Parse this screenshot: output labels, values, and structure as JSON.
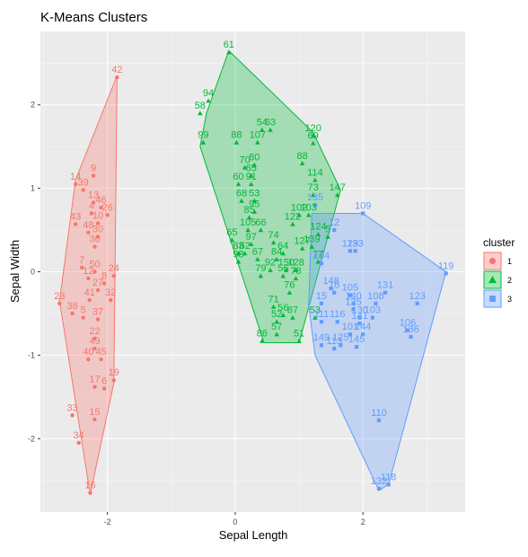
{
  "chart_data": {
    "type": "scatter",
    "title": "K-Means Clusters",
    "xlabel": "Sepal Length",
    "ylabel": "Sepal Width",
    "xlim": [
      -3.05,
      3.6
    ],
    "ylim": [
      -2.88,
      2.88
    ],
    "x_ticks": [
      -2,
      0,
      2
    ],
    "y_ticks": [
      -2,
      -1,
      0,
      1,
      2
    ],
    "grid": true,
    "legend": {
      "title": "cluster",
      "position": "right",
      "items": [
        {
          "key": "1",
          "label": "1",
          "color": "#F8766D",
          "shape": "circle"
        },
        {
          "key": "2",
          "label": "2",
          "color": "#00BA38",
          "shape": "triangle"
        },
        {
          "key": "3",
          "label": "3",
          "color": "#619CFF",
          "shape": "square"
        }
      ]
    },
    "clusters": [
      {
        "key": "1",
        "color": "#F8766D",
        "shape": "circle",
        "hull": [
          [
            -2.27,
            -2.67
          ],
          [
            -2.75,
            -0.35
          ],
          [
            -2.5,
            1.1
          ],
          [
            -1.85,
            2.35
          ],
          [
            -1.9,
            -1.33
          ]
        ],
        "points": [
          {
            "x": -1.85,
            "y": 2.33,
            "label": "42"
          },
          {
            "x": -2.22,
            "y": 1.15,
            "label": "9"
          },
          {
            "x": -2.5,
            "y": 1.05,
            "label": "14"
          },
          {
            "x": -2.38,
            "y": 0.98,
            "label": "39"
          },
          {
            "x": -2.22,
            "y": 0.83,
            "label": "13"
          },
          {
            "x": -2.1,
            "y": 0.77,
            "label": "46"
          },
          {
            "x": -2.0,
            "y": 0.68,
            "label": "26"
          },
          {
            "x": -2.25,
            "y": 0.7,
            "label": "4"
          },
          {
            "x": -2.15,
            "y": 0.58,
            "label": "10"
          },
          {
            "x": -2.5,
            "y": 0.57,
            "label": "43"
          },
          {
            "x": -2.3,
            "y": 0.47,
            "label": "48"
          },
          {
            "x": -2.15,
            "y": 0.42,
            "label": "30"
          },
          {
            "x": -2.2,
            "y": 0.3,
            "label": "36"
          },
          {
            "x": -2.4,
            "y": 0.05,
            "label": "7"
          },
          {
            "x": -2.2,
            "y": 0.0,
            "label": "50"
          },
          {
            "x": -1.9,
            "y": -0.05,
            "label": "24"
          },
          {
            "x": -2.3,
            "y": -0.08,
            "label": "12"
          },
          {
            "x": -2.05,
            "y": -0.14,
            "label": "8"
          },
          {
            "x": -2.15,
            "y": -0.22,
            "label": "27"
          },
          {
            "x": -2.28,
            "y": -0.34,
            "label": "41"
          },
          {
            "x": -1.95,
            "y": -0.34,
            "label": "32"
          },
          {
            "x": -2.75,
            "y": -0.38,
            "label": "23"
          },
          {
            "x": -2.55,
            "y": -0.5,
            "label": "38"
          },
          {
            "x": -2.38,
            "y": -0.55,
            "label": "5"
          },
          {
            "x": -2.15,
            "y": -0.57,
            "label": "37"
          },
          {
            "x": -2.2,
            "y": -0.8,
            "label": "22"
          },
          {
            "x": -2.2,
            "y": -0.92,
            "label": "49"
          },
          {
            "x": -2.3,
            "y": -1.05,
            "label": "40"
          },
          {
            "x": -2.1,
            "y": -1.05,
            "label": "45"
          },
          {
            "x": -1.9,
            "y": -1.3,
            "label": "19"
          },
          {
            "x": -2.2,
            "y": -1.38,
            "label": "17"
          },
          {
            "x": -2.05,
            "y": -1.4,
            "label": "6"
          },
          {
            "x": -2.55,
            "y": -1.72,
            "label": "33"
          },
          {
            "x": -2.2,
            "y": -1.77,
            "label": "15"
          },
          {
            "x": -2.45,
            "y": -2.05,
            "label": "34"
          },
          {
            "x": -2.27,
            "y": -2.65,
            "label": "16"
          }
        ]
      },
      {
        "key": "2",
        "color": "#00BA38",
        "shape": "triangle",
        "hull": [
          [
            -0.45,
            1.9
          ],
          [
            -0.1,
            2.65
          ],
          [
            1.22,
            1.67
          ],
          [
            1.65,
            0.98
          ],
          [
            1.0,
            -0.85
          ],
          [
            0.45,
            -0.85
          ],
          [
            -0.55,
            1.5
          ]
        ],
        "points": [
          {
            "x": -0.1,
            "y": 2.63,
            "label": "61"
          },
          {
            "x": -0.42,
            "y": 2.05,
            "label": "94"
          },
          {
            "x": -0.55,
            "y": 1.9,
            "label": "58"
          },
          {
            "x": 0.55,
            "y": 1.7,
            "label": "63"
          },
          {
            "x": 0.42,
            "y": 1.7,
            "label": "54"
          },
          {
            "x": 1.22,
            "y": 1.63,
            "label": "120"
          },
          {
            "x": 1.22,
            "y": 1.54,
            "label": "69"
          },
          {
            "x": 0.02,
            "y": 1.55,
            "label": "88"
          },
          {
            "x": 0.35,
            "y": 1.55,
            "label": "107"
          },
          {
            "x": -0.5,
            "y": 1.55,
            "label": "99"
          },
          {
            "x": 1.05,
            "y": 1.3,
            "label": "88"
          },
          {
            "x": 0.3,
            "y": 1.28,
            "label": "80"
          },
          {
            "x": 0.15,
            "y": 1.25,
            "label": "70"
          },
          {
            "x": 0.25,
            "y": 1.15,
            "label": "65"
          },
          {
            "x": 0.25,
            "y": 1.05,
            "label": "91"
          },
          {
            "x": 1.25,
            "y": 1.1,
            "label": "114"
          },
          {
            "x": 0.05,
            "y": 1.05,
            "label": "60"
          },
          {
            "x": 1.22,
            "y": 0.92,
            "label": "73"
          },
          {
            "x": 1.6,
            "y": 0.92,
            "label": "147"
          },
          {
            "x": 0.1,
            "y": 0.85,
            "label": "68"
          },
          {
            "x": 0.3,
            "y": 0.85,
            "label": "53"
          },
          {
            "x": 0.3,
            "y": 0.72,
            "label": "95"
          },
          {
            "x": 0.22,
            "y": 0.65,
            "label": "85"
          },
          {
            "x": 1.0,
            "y": 0.68,
            "label": "102"
          },
          {
            "x": 1.15,
            "y": 0.68,
            "label": "103"
          },
          {
            "x": 0.9,
            "y": 0.57,
            "label": "122"
          },
          {
            "x": 0.2,
            "y": 0.5,
            "label": "105"
          },
          {
            "x": 0.4,
            "y": 0.5,
            "label": "66"
          },
          {
            "x": 1.3,
            "y": 0.45,
            "label": "124"
          },
          {
            "x": 1.45,
            "y": 0.42,
            "label": "5"
          },
          {
            "x": 0.6,
            "y": 0.35,
            "label": "74"
          },
          {
            "x": 0.25,
            "y": 0.33,
            "label": "97"
          },
          {
            "x": -0.05,
            "y": 0.38,
            "label": "65"
          },
          {
            "x": 1.2,
            "y": 0.3,
            "label": "139"
          },
          {
            "x": 1.05,
            "y": 0.28,
            "label": "127"
          },
          {
            "x": 0.05,
            "y": 0.22,
            "label": "83"
          },
          {
            "x": 0.15,
            "y": 0.22,
            "label": "62"
          },
          {
            "x": 0.75,
            "y": 0.22,
            "label": "64"
          },
          {
            "x": 0.35,
            "y": 0.15,
            "label": "67"
          },
          {
            "x": 0.65,
            "y": 0.15,
            "label": "84"
          },
          {
            "x": 0.05,
            "y": 0.12,
            "label": "98"
          },
          {
            "x": 1.3,
            "y": 0.12,
            "label": "77"
          },
          {
            "x": 0.55,
            "y": 0.02,
            "label": "92"
          },
          {
            "x": 0.8,
            "y": 0.02,
            "label": "150"
          },
          {
            "x": 0.95,
            "y": 0.02,
            "label": "128"
          },
          {
            "x": 0.4,
            "y": -0.05,
            "label": "79"
          },
          {
            "x": 0.75,
            "y": -0.05,
            "label": "56"
          },
          {
            "x": 0.95,
            "y": -0.08,
            "label": "78"
          },
          {
            "x": 0.85,
            "y": -0.25,
            "label": "76"
          },
          {
            "x": 0.6,
            "y": -0.42,
            "label": "71"
          },
          {
            "x": 0.75,
            "y": -0.52,
            "label": "56"
          },
          {
            "x": 0.9,
            "y": -0.55,
            "label": "87"
          },
          {
            "x": 0.65,
            "y": -0.6,
            "label": "52"
          },
          {
            "x": 0.65,
            "y": -0.75,
            "label": "57"
          },
          {
            "x": 0.42,
            "y": -0.83,
            "label": "86"
          },
          {
            "x": 1.0,
            "y": -0.83,
            "label": "51"
          },
          {
            "x": 1.25,
            "y": -0.55,
            "label": "53"
          }
        ]
      },
      {
        "key": "3",
        "color": "#619CFF",
        "shape": "square",
        "hull": [
          [
            1.2,
            0.7
          ],
          [
            2.0,
            0.7
          ],
          [
            3.3,
            0.0
          ],
          [
            2.4,
            -2.55
          ],
          [
            2.25,
            -2.62
          ],
          [
            1.25,
            -1.0
          ],
          [
            1.15,
            -0.4
          ]
        ],
        "points": [
          {
            "x": 2.0,
            "y": 0.7,
            "label": "109"
          },
          {
            "x": 1.25,
            "y": 0.8,
            "label": "135"
          },
          {
            "x": 1.55,
            "y": 0.5,
            "label": "12"
          },
          {
            "x": 1.8,
            "y": 0.25,
            "label": "129"
          },
          {
            "x": 1.88,
            "y": 0.25,
            "label": "133"
          },
          {
            "x": 3.3,
            "y": -0.02,
            "label": "119"
          },
          {
            "x": 1.35,
            "y": 0.1,
            "label": "104"
          },
          {
            "x": 1.5,
            "y": -0.2,
            "label": "148"
          },
          {
            "x": 1.55,
            "y": -0.25,
            "label": "16"
          },
          {
            "x": 2.35,
            "y": -0.25,
            "label": "131"
          },
          {
            "x": 1.8,
            "y": -0.28,
            "label": "105"
          },
          {
            "x": 2.2,
            "y": -0.38,
            "label": "108"
          },
          {
            "x": 2.85,
            "y": -0.38,
            "label": "123"
          },
          {
            "x": 1.85,
            "y": -0.38,
            "label": "140"
          },
          {
            "x": 1.35,
            "y": -0.38,
            "label": "15"
          },
          {
            "x": 1.85,
            "y": -0.45,
            "label": "125"
          },
          {
            "x": 1.95,
            "y": -0.55,
            "label": "130"
          },
          {
            "x": 2.15,
            "y": -0.55,
            "label": "103"
          },
          {
            "x": 1.95,
            "y": -0.62,
            "label": "141"
          },
          {
            "x": 1.35,
            "y": -0.6,
            "label": "111"
          },
          {
            "x": 1.6,
            "y": -0.6,
            "label": "116"
          },
          {
            "x": 2.7,
            "y": -0.7,
            "label": "106"
          },
          {
            "x": 2.75,
            "y": -0.78,
            "label": "136"
          },
          {
            "x": 1.8,
            "y": -0.75,
            "label": "101"
          },
          {
            "x": 2.0,
            "y": -0.75,
            "label": "144"
          },
          {
            "x": 1.35,
            "y": -0.88,
            "label": "149"
          },
          {
            "x": 1.55,
            "y": -0.92,
            "label": "113"
          },
          {
            "x": 1.65,
            "y": -0.88,
            "label": "125"
          },
          {
            "x": 1.9,
            "y": -0.9,
            "label": "145"
          },
          {
            "x": 2.25,
            "y": -1.78,
            "label": "110"
          },
          {
            "x": 2.4,
            "y": -2.55,
            "label": "118"
          },
          {
            "x": 2.25,
            "y": -2.6,
            "label": "132"
          }
        ]
      }
    ]
  }
}
